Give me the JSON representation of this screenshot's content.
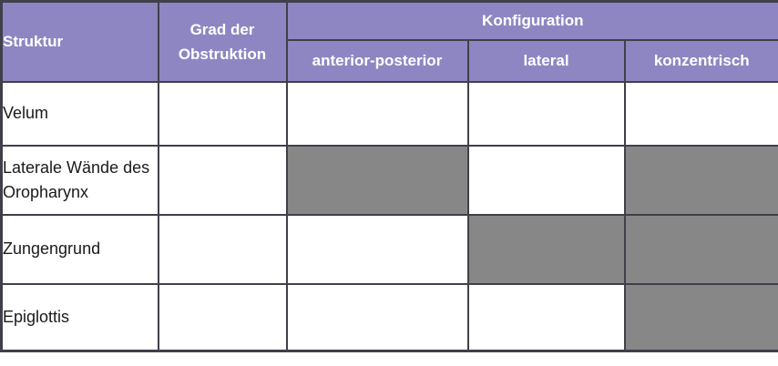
{
  "table": {
    "header": {
      "struktur": "Struktur",
      "grad": "Grad der Obstruktion",
      "konfiguration": "Konfiguration",
      "sub": [
        "anterior-posterior",
        "lateral",
        "konzentrisch"
      ]
    },
    "rows": [
      {
        "label": "Velum",
        "cells": [
          "empty",
          "empty",
          "empty"
        ]
      },
      {
        "label": "Laterale Wände des Oropharynx",
        "cells": [
          "filled",
          "empty",
          "filled"
        ]
      },
      {
        "label": "Zungengrund",
        "cells": [
          "empty",
          "filled",
          "filled"
        ]
      },
      {
        "label": "Epiglottis",
        "cells": [
          "empty",
          "empty",
          "filled"
        ]
      }
    ]
  },
  "colors": {
    "header_bg": "#8e86c2",
    "header_text": "#ffffff",
    "filled_bg": "#878787",
    "border": "#40404a",
    "body_text": "#1a1a1a"
  }
}
